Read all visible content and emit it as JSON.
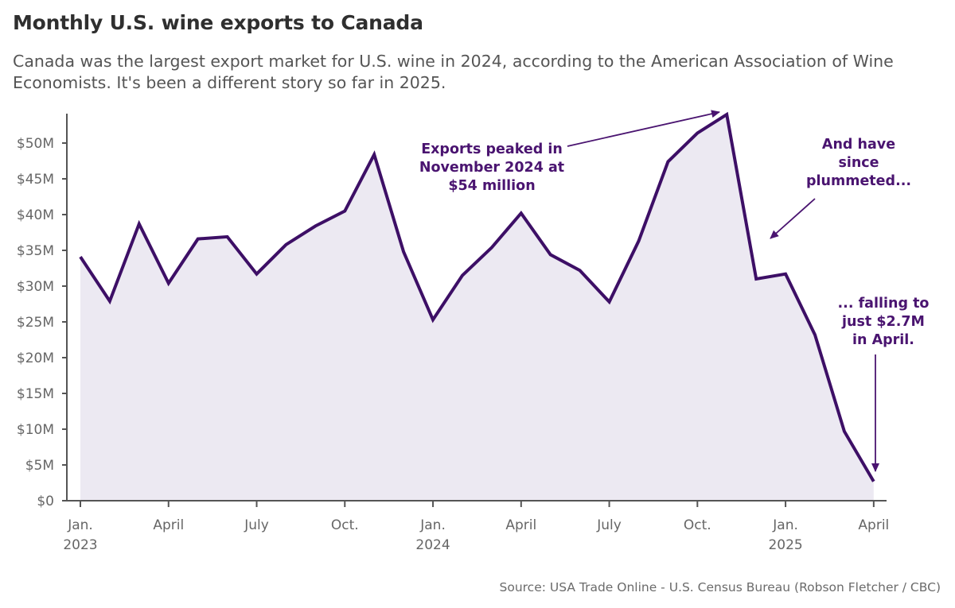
{
  "title": "Monthly U.S. wine exports to Canada",
  "subtitle": "Canada was the largest export market for U.S. wine in 2024, according to the American Association of Wine Economists. It's been a different story so far in 2025.",
  "source": "Source: USA Trade Online - U.S. Census Bureau (Robson Fletcher / CBC)",
  "colors": {
    "line": "#3d0f66",
    "area": "#ece9f2",
    "annotation": "#4a1470",
    "axis": "#555555"
  },
  "chart_data": {
    "type": "area",
    "title": "Monthly U.S. wine exports to Canada",
    "xlabel": "",
    "ylabel": "",
    "ylim": [
      0,
      54
    ],
    "grid": false,
    "x": [
      "2023-01",
      "2023-02",
      "2023-03",
      "2023-04",
      "2023-05",
      "2023-06",
      "2023-07",
      "2023-08",
      "2023-09",
      "2023-10",
      "2023-11",
      "2023-12",
      "2024-01",
      "2024-02",
      "2024-03",
      "2024-04",
      "2024-05",
      "2024-06",
      "2024-07",
      "2024-08",
      "2024-09",
      "2024-10",
      "2024-11",
      "2024-12",
      "2025-01",
      "2025-02",
      "2025-03",
      "2025-04"
    ],
    "values": [
      34.1,
      27.9,
      38.7,
      30.4,
      36.6,
      36.9,
      31.7,
      35.8,
      38.4,
      40.5,
      48.4,
      34.8,
      25.3,
      31.5,
      35.4,
      40.2,
      34.4,
      32.2,
      27.8,
      36.3,
      47.4,
      51.4,
      54.0,
      31.0,
      31.7,
      23.2,
      9.7,
      2.7
    ],
    "y_ticks": [
      {
        "value": 0,
        "label": "$0"
      },
      {
        "value": 5,
        "label": "$5M"
      },
      {
        "value": 10,
        "label": "$10M"
      },
      {
        "value": 15,
        "label": "$15M"
      },
      {
        "value": 20,
        "label": "$20M"
      },
      {
        "value": 25,
        "label": "$25M"
      },
      {
        "value": 30,
        "label": "$30M"
      },
      {
        "value": 35,
        "label": "$35M"
      },
      {
        "value": 40,
        "label": "$40M"
      },
      {
        "value": 45,
        "label": "$45M"
      },
      {
        "value": 50,
        "label": "$50M"
      }
    ],
    "x_ticks": [
      {
        "index": 0,
        "label": "Jan.",
        "year": "2023"
      },
      {
        "index": 3,
        "label": "April",
        "year": ""
      },
      {
        "index": 6,
        "label": "July",
        "year": ""
      },
      {
        "index": 9,
        "label": "Oct.",
        "year": ""
      },
      {
        "index": 12,
        "label": "Jan.",
        "year": "2024"
      },
      {
        "index": 15,
        "label": "April",
        "year": ""
      },
      {
        "index": 18,
        "label": "July",
        "year": ""
      },
      {
        "index": 21,
        "label": "Oct.",
        "year": ""
      },
      {
        "index": 24,
        "label": "Jan.",
        "year": "2025"
      },
      {
        "index": 27,
        "label": "April",
        "year": ""
      }
    ],
    "annotations": [
      {
        "lines": [
          "Exports peaked in",
          "November 2024 at",
          "$54 million"
        ],
        "target_index": 22
      },
      {
        "lines": [
          "And have",
          "since",
          "plummeted..."
        ],
        "target_index": 23
      },
      {
        "lines": [
          "... falling to",
          "just $2.7M",
          "in April."
        ],
        "target_index": 27
      }
    ]
  }
}
